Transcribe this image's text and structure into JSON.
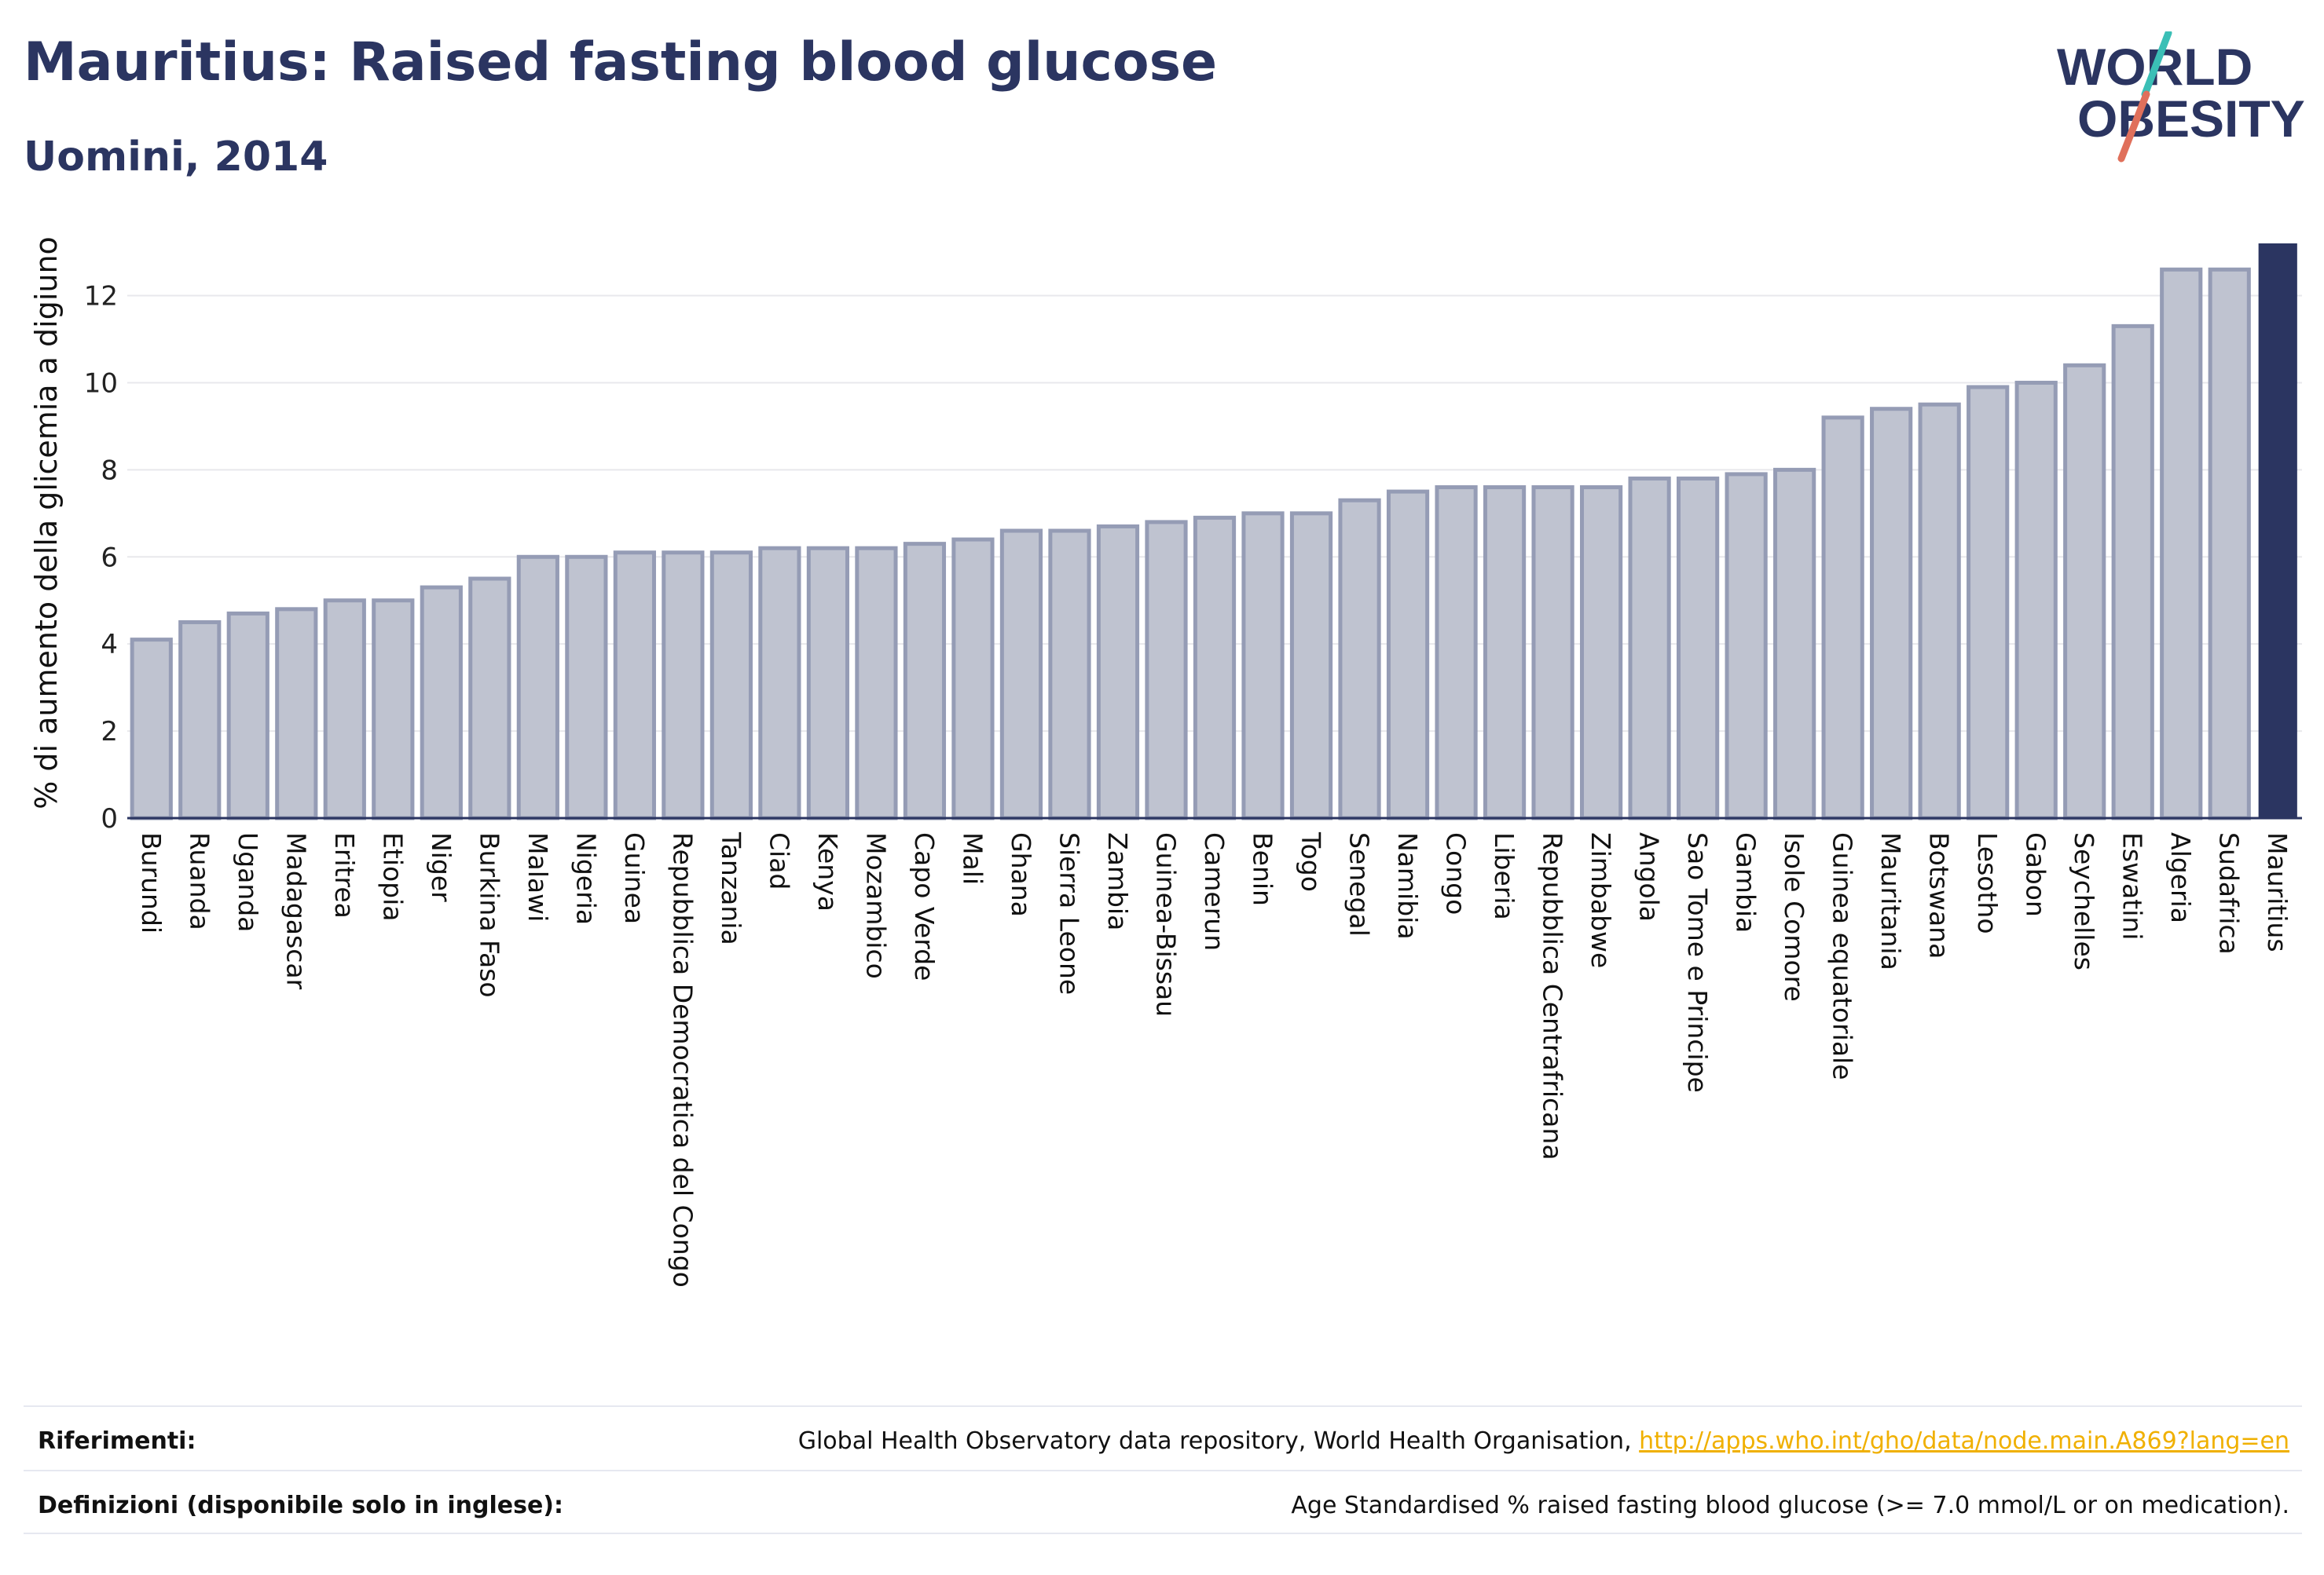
{
  "title": "Mauritius: Raised fasting blood glucose",
  "subtitle": "Uomini, 2014",
  "logo": {
    "line1": "WORLD",
    "line2": "OBESITY"
  },
  "colors": {
    "highlight": "#2b3561",
    "bar": "#bfc3d0",
    "bar_border": "#959cb5",
    "grid": "#e8e8ec",
    "accent_teal": "#3bbfb6",
    "accent_red": "#e0705b",
    "link": "#f0b000"
  },
  "chart_data": {
    "type": "bar",
    "ylabel": "% di aumento della glicemia a digiuno",
    "ylim": [
      0,
      13.2
    ],
    "yticks": [
      0,
      2,
      4,
      6,
      8,
      10,
      12
    ],
    "grid": true,
    "highlight": "Mauritius",
    "categories": [
      "Burundi",
      "Ruanda",
      "Uganda",
      "Madagascar",
      "Eritrea",
      "Etiopia",
      "Niger",
      "Burkina Faso",
      "Malawi",
      "Nigeria",
      "Guinea",
      "Repubblica Democratica del Congo",
      "Tanzania",
      "Ciad",
      "Kenya",
      "Mozambico",
      "Capo Verde",
      "Mali",
      "Ghana",
      "Sierra Leone",
      "Zambia",
      "Guinea-Bissau",
      "Camerun",
      "Benin",
      "Togo",
      "Senegal",
      "Namibia",
      "Congo",
      "Liberia",
      "Repubblica Centrafricana",
      "Zimbabwe",
      "Angola",
      "Sao Tome e Principe",
      "Gambia",
      "Isole Comore",
      "Guinea equatoriale",
      "Mauritania",
      "Botswana",
      "Lesotho",
      "Gabon",
      "Seychelles",
      "Eswatini",
      "Algeria",
      "Sudafrica",
      "Mauritius"
    ],
    "values": [
      4.1,
      4.5,
      4.7,
      4.8,
      5.0,
      5.0,
      5.3,
      5.5,
      6.0,
      6.0,
      6.1,
      6.1,
      6.1,
      6.2,
      6.2,
      6.2,
      6.3,
      6.4,
      6.6,
      6.6,
      6.7,
      6.8,
      6.9,
      7.0,
      7.0,
      7.3,
      7.5,
      7.6,
      7.6,
      7.6,
      7.6,
      7.8,
      7.8,
      7.9,
      8.0,
      9.2,
      9.4,
      9.5,
      9.9,
      10.0,
      10.4,
      11.3,
      12.6,
      12.6,
      13.2
    ]
  },
  "footer": {
    "references_label": "Riferimenti:",
    "references_text": "Global Health Observatory data repository, World Health Organisation, ",
    "references_link": "http://apps.who.int/gho/data/node.main.A869?lang=en",
    "definitions_label": "Definizioni (disponibile solo in inglese):",
    "definitions_text": "Age Standardised % raised fasting blood glucose (>= 7.0 mmol/L or on medication)."
  }
}
